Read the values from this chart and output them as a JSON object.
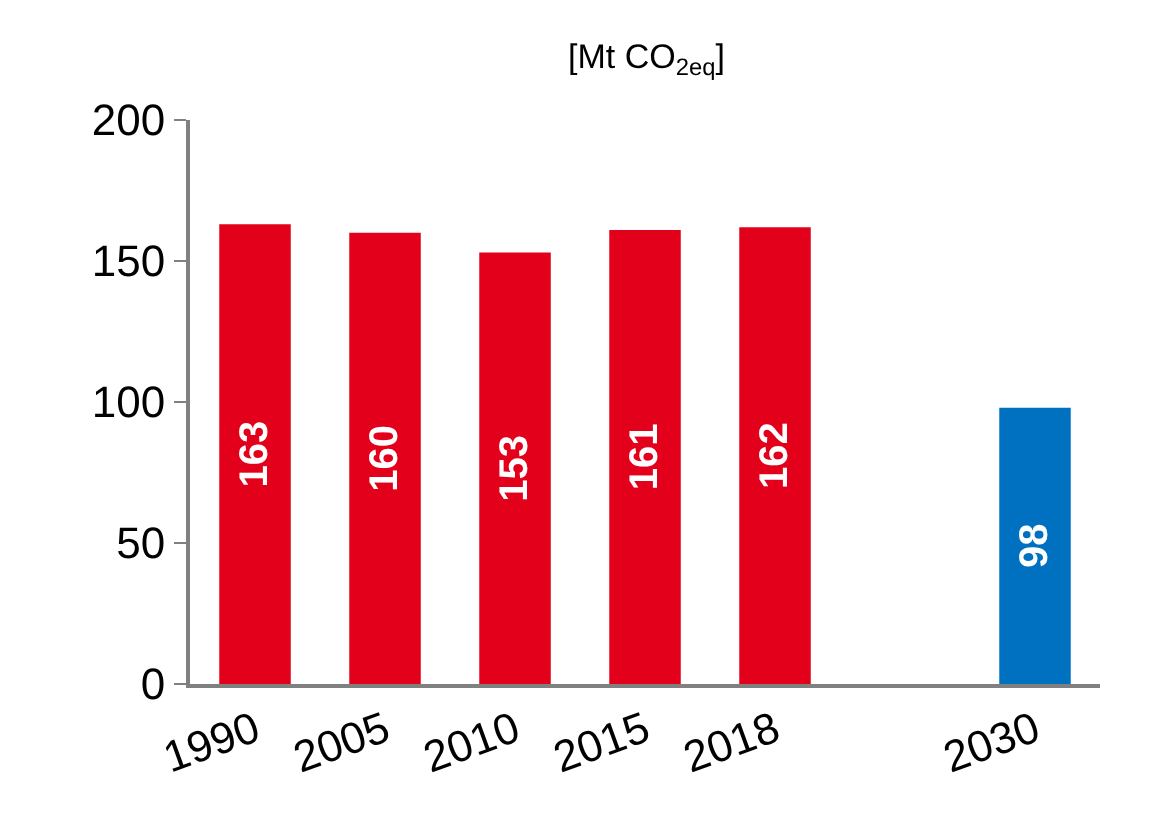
{
  "chart_data": {
    "type": "bar",
    "subtitle": "[Mt CO$_{2eq}$]",
    "categories": [
      "1990",
      "2005",
      "2010",
      "2015",
      "2018",
      null,
      "2030"
    ],
    "values": [
      163,
      160,
      153,
      161,
      162,
      null,
      98
    ],
    "colors": [
      "#e2001a",
      "#e2001a",
      "#e2001a",
      "#e2001a",
      "#e2001a",
      null,
      "#0070c0"
    ],
    "ylim": [
      0,
      200
    ],
    "yticks": [
      0,
      50,
      100,
      150,
      200
    ],
    "data_labels": true
  }
}
